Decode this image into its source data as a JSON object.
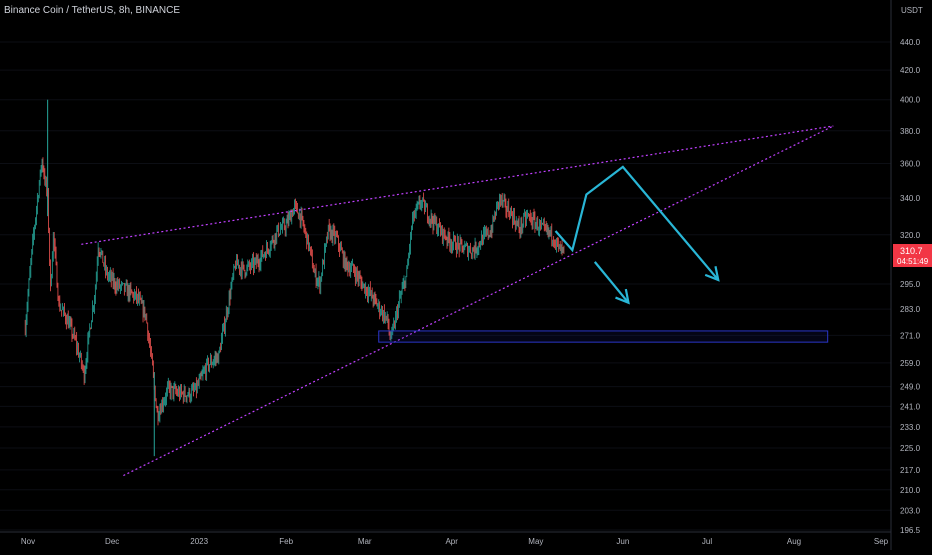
{
  "window": {
    "title": "Binance Coin / TetherUS, 8h, BINANCE"
  },
  "price_scale": {
    "currency": "USDT",
    "last_price": "310.7",
    "countdown": "04:51:49"
  },
  "colors": {
    "background": "#000000",
    "bull_candle": "#26a69a",
    "bear_candle": "#ef5350",
    "trendline": "#c040ff",
    "arrow": "#29b6d6",
    "box": "#2a35c8",
    "axis_text": "#b2b5be",
    "price_tag": "#f23645"
  },
  "chart_data": {
    "type": "candlestick",
    "title": "Binance Coin / TetherUS, 8h, BINANCE",
    "y_scale": "log",
    "ylim": [
      195,
      460
    ],
    "xlim": [
      "2022-10-31",
      "2023-09-05"
    ],
    "y_ticks": [
      "440.0",
      "420.0",
      "400.0",
      "380.0",
      "360.0",
      "340.0",
      "320.0",
      "295.0",
      "283.0",
      "271.0",
      "259.0",
      "249.0",
      "241.0",
      "233.0",
      "225.0",
      "217.0",
      "210.0",
      "203.0",
      "196.5"
    ],
    "x_ticks": [
      {
        "label": "Nov",
        "date": "2022-11-01"
      },
      {
        "label": "Dec",
        "date": "2022-12-01"
      },
      {
        "label": "2023",
        "date": "2023-01-01"
      },
      {
        "label": "Feb",
        "date": "2023-02-01"
      },
      {
        "label": "Mar",
        "date": "2023-03-01"
      },
      {
        "label": "Apr",
        "date": "2023-04-01"
      },
      {
        "label": "May",
        "date": "2023-05-01"
      },
      {
        "label": "Jun",
        "date": "2023-06-01"
      },
      {
        "label": "Jul",
        "date": "2023-07-01"
      },
      {
        "label": "Aug",
        "date": "2023-08-01"
      },
      {
        "label": "Sep",
        "date": "2023-09-01"
      }
    ],
    "price_path": [
      [
        "2022-10-31",
        275
      ],
      [
        "2022-11-04",
        335
      ],
      [
        "2022-11-06",
        362
      ],
      [
        "2022-11-08",
        340
      ],
      [
        "2022-11-09",
        292
      ],
      [
        "2022-11-10",
        320
      ],
      [
        "2022-11-12",
        285
      ],
      [
        "2022-11-15",
        278
      ],
      [
        "2022-11-18",
        268
      ],
      [
        "2022-11-21",
        254
      ],
      [
        "2022-11-25",
        293
      ],
      [
        "2022-11-26",
        315
      ],
      [
        "2022-11-29",
        300
      ],
      [
        "2022-12-02",
        295
      ],
      [
        "2022-12-06",
        292
      ],
      [
        "2022-12-10",
        288
      ],
      [
        "2022-12-13",
        280
      ],
      [
        "2022-12-15",
        260
      ],
      [
        "2022-12-17",
        238
      ],
      [
        "2022-12-18",
        240
      ],
      [
        "2022-12-21",
        248
      ],
      [
        "2022-12-25",
        246
      ],
      [
        "2022-12-29",
        246
      ],
      [
        "2022-12-31",
        248
      ],
      [
        "2023-01-04",
        258
      ],
      [
        "2023-01-08",
        262
      ],
      [
        "2023-01-11",
        283
      ],
      [
        "2023-01-14",
        305
      ],
      [
        "2023-01-17",
        302
      ],
      [
        "2023-01-21",
        305
      ],
      [
        "2023-01-25",
        312
      ],
      [
        "2023-01-29",
        322
      ],
      [
        "2023-02-01",
        325
      ],
      [
        "2023-02-04",
        335
      ],
      [
        "2023-02-06",
        330
      ],
      [
        "2023-02-09",
        315
      ],
      [
        "2023-02-11",
        300
      ],
      [
        "2023-02-13",
        295
      ],
      [
        "2023-02-16",
        322
      ],
      [
        "2023-02-19",
        318
      ],
      [
        "2023-02-22",
        305
      ],
      [
        "2023-02-25",
        302
      ],
      [
        "2023-02-28",
        295
      ],
      [
        "2023-03-02",
        292
      ],
      [
        "2023-03-04",
        288
      ],
      [
        "2023-03-07",
        282
      ],
      [
        "2023-03-09",
        278
      ],
      [
        "2023-03-10",
        270
      ],
      [
        "2023-03-11",
        272
      ],
      [
        "2023-03-13",
        285
      ],
      [
        "2023-03-16",
        300
      ],
      [
        "2023-03-18",
        328
      ],
      [
        "2023-03-21",
        338
      ],
      [
        "2023-03-24",
        330
      ],
      [
        "2023-03-28",
        322
      ],
      [
        "2023-04-01",
        316
      ],
      [
        "2023-04-05",
        313
      ],
      [
        "2023-04-09",
        312
      ],
      [
        "2023-04-12",
        318
      ],
      [
        "2023-04-15",
        322
      ],
      [
        "2023-04-18",
        340
      ],
      [
        "2023-04-20",
        335
      ],
      [
        "2023-04-22",
        332
      ],
      [
        "2023-04-25",
        323
      ],
      [
        "2023-04-28",
        330
      ],
      [
        "2023-05-01",
        326
      ],
      [
        "2023-05-04",
        322
      ],
      [
        "2023-05-07",
        320
      ],
      [
        "2023-05-09",
        313
      ],
      [
        "2023-05-11",
        310.7
      ]
    ],
    "wicks": [
      {
        "date": "2022-11-08",
        "high": 400,
        "low": 330
      },
      {
        "date": "2022-12-16",
        "high": 255,
        "low": 222
      }
    ],
    "annotations": {
      "upper_trendline": [
        [
          "2022-11-20",
          315
        ],
        [
          "2023-08-15",
          383
        ]
      ],
      "lower_trendline": [
        [
          "2022-12-05",
          215
        ],
        [
          "2023-08-15",
          383
        ]
      ],
      "support_zone": {
        "from": "2023-03-06",
        "to": "2023-08-13",
        "top": 273,
        "bottom": 268
      },
      "projection_arrows": [
        [
          [
            "2023-05-08",
            322
          ],
          [
            "2023-05-14",
            312
          ],
          [
            "2023-05-19",
            342
          ],
          [
            "2023-06-01",
            358
          ],
          [
            "2023-07-05",
            297
          ]
        ],
        [
          [
            "2023-05-22",
            306
          ],
          [
            "2023-06-03",
            286
          ]
        ]
      ]
    }
  }
}
